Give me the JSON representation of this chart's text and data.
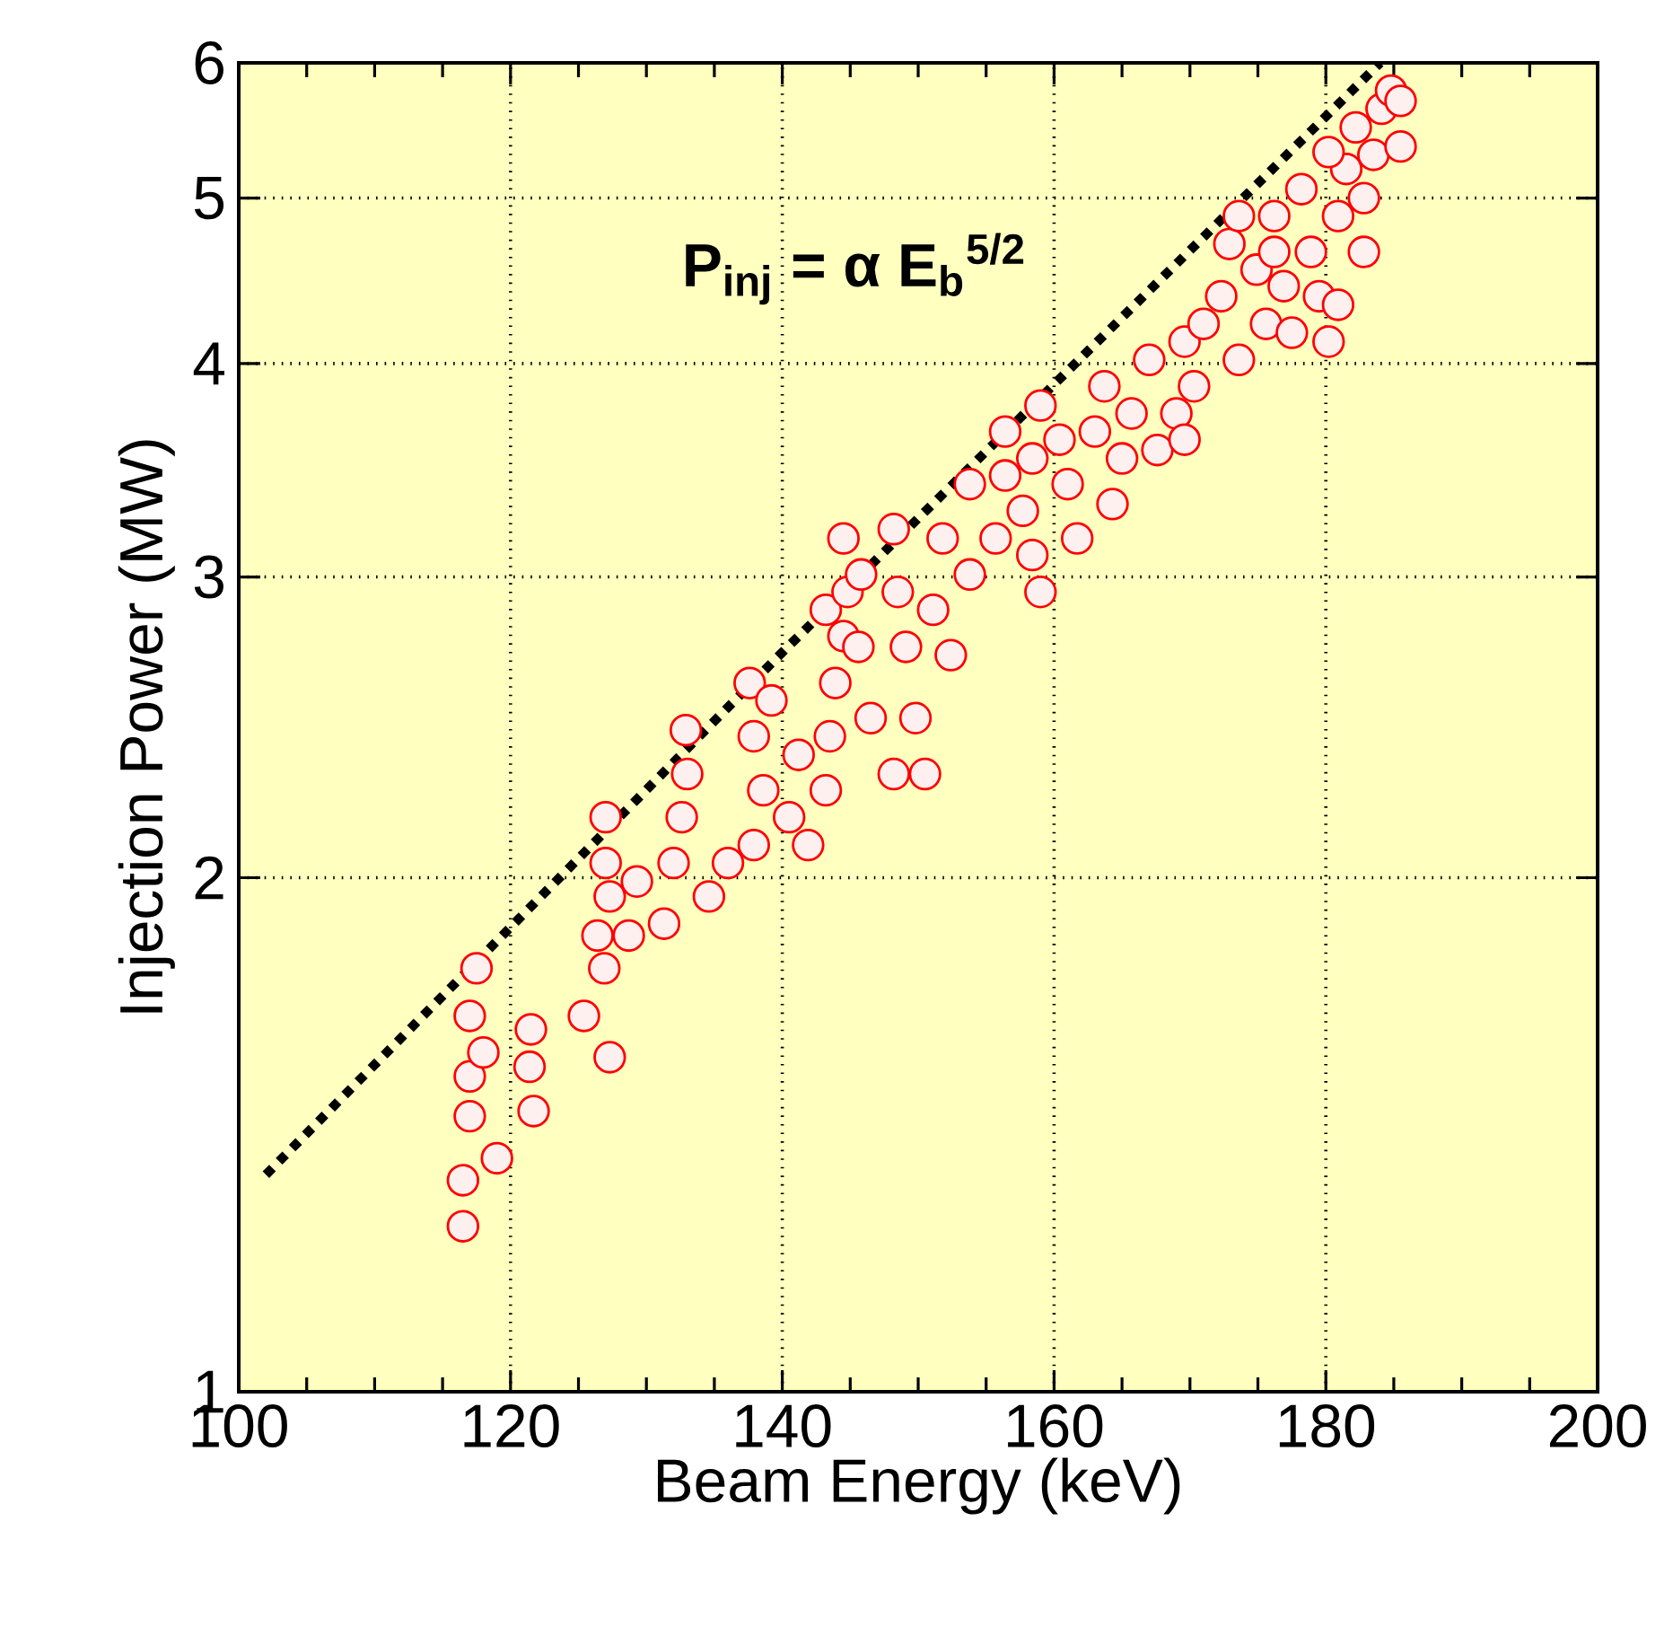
{
  "chart_data": {
    "type": "scatter",
    "xlabel": "Beam Energy (keV)",
    "ylabel": "Injection Power (MW)",
    "log": "y",
    "grid": true,
    "xlim": [
      100,
      200
    ],
    "ylim": [
      1,
      6
    ],
    "xticks": [
      100,
      120,
      140,
      160,
      180,
      200
    ],
    "yticks": [
      1,
      2,
      3,
      4,
      5,
      6
    ],
    "annotations": [
      "P$_{inj}$ = α E$_{b}$$^{5/2}$"
    ],
    "series": [
      {
        "color": "#ff0000",
        "marker": "circle",
        "x": [
          116.5,
          116.5,
          119,
          117,
          117,
          118,
          121.7,
          121.4,
          121.5,
          117,
          117.5,
          125.4,
          127.3,
          126.9,
          126.4,
          127.3,
          127,
          127,
          128.7,
          129.3,
          131.3,
          132,
          132.6,
          133,
          132.9,
          136,
          134.6,
          137.9,
          138.6,
          137.9,
          137.6,
          139.2,
          140.5,
          141.2,
          141.9,
          143.2,
          143.5,
          143.9,
          143.2,
          144.5,
          144.8,
          144.5,
          145.8,
          145.6,
          146.5,
          148.2,
          148.5,
          149.1,
          149.8,
          150.5,
          148.2,
          151.1,
          152.4,
          151.8,
          153.8,
          153.8,
          155.7,
          156.4,
          156.4,
          157.7,
          158.4,
          159,
          158.4,
          159,
          160.4,
          161,
          161.7,
          163,
          163.7,
          164.3,
          165,
          165.7,
          167,
          167.6,
          169,
          169.6,
          170.3,
          171,
          169.6,
          172.3,
          173.6,
          172.9,
          174.9,
          175.6,
          176.2,
          176.9,
          177.5,
          178.2,
          178.9,
          179.5,
          180.2,
          180.9,
          180.9,
          181.5,
          182.2,
          182.8,
          183.5,
          184.1,
          184.8,
          185.5,
          185.5,
          180.2,
          176.2,
          173.6,
          182.8
        ],
        "values": [
          1.25,
          1.33,
          1.37,
          1.45,
          1.53,
          1.58,
          1.46,
          1.55,
          1.63,
          1.66,
          1.77,
          1.66,
          1.57,
          1.77,
          1.85,
          1.95,
          2.04,
          2.17,
          1.85,
          1.99,
          1.88,
          2.04,
          2.17,
          2.3,
          2.44,
          2.04,
          1.95,
          2.09,
          2.25,
          2.42,
          2.6,
          2.54,
          2.17,
          2.36,
          2.09,
          2.25,
          2.42,
          2.6,
          2.87,
          2.77,
          2.94,
          3.16,
          3.01,
          2.73,
          2.48,
          3.2,
          2.94,
          2.73,
          2.48,
          2.3,
          2.3,
          2.87,
          2.7,
          3.16,
          3.01,
          3.4,
          3.16,
          3.44,
          3.65,
          3.28,
          3.09,
          2.94,
          3.52,
          3.78,
          3.61,
          3.4,
          3.16,
          3.65,
          3.88,
          3.31,
          3.52,
          3.74,
          4.02,
          3.56,
          3.74,
          4.12,
          3.88,
          4.22,
          3.61,
          4.38,
          4.02,
          4.7,
          4.54,
          4.22,
          4.88,
          4.44,
          4.17,
          5.06,
          4.65,
          4.38,
          4.12,
          4.33,
          4.88,
          5.2,
          5.5,
          5.0,
          5.3,
          5.64,
          5.78,
          5.7,
          5.36,
          5.32,
          4.65,
          4.88,
          4.65
        ]
      },
      {
        "type": "line",
        "color": "#000000",
        "line_style": "dotted",
        "marker": "none",
        "x": [
          102,
          140,
          184
        ],
        "values": [
          1.34,
          2.71,
          6.0
        ]
      }
    ]
  }
}
